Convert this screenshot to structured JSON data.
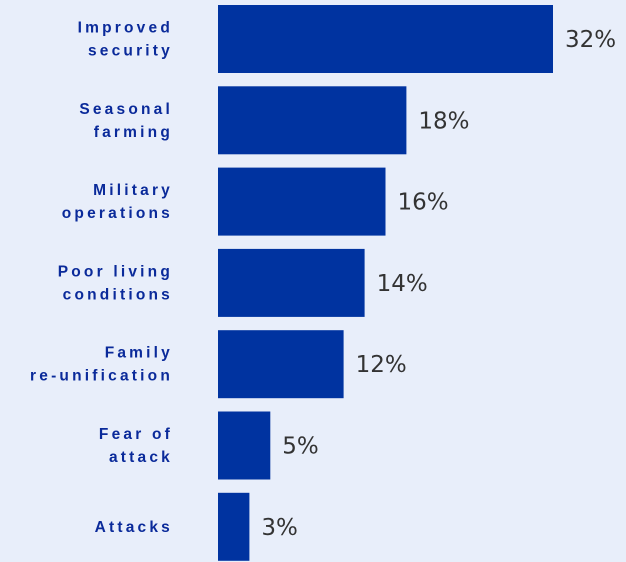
{
  "chart_data": {
    "type": "bar",
    "orientation": "horizontal",
    "categories": [
      [
        "Improved",
        "security"
      ],
      [
        "Seasonal",
        "farming"
      ],
      [
        "Military",
        "operations"
      ],
      [
        "Poor living",
        "conditions"
      ],
      [
        "Family",
        "re-unification"
      ],
      [
        "Fear of",
        "attack"
      ],
      [
        "Attacks"
      ]
    ],
    "values": [
      32,
      18,
      16,
      14,
      12,
      5,
      3
    ],
    "value_labels": [
      "32%",
      "18%",
      "16%",
      "14%",
      "12%",
      "5%",
      "3%"
    ],
    "xlim": [
      0,
      32
    ],
    "grid": false,
    "legend": "none",
    "bar_color": "#0033a0",
    "background_color": "#e8eefa"
  }
}
